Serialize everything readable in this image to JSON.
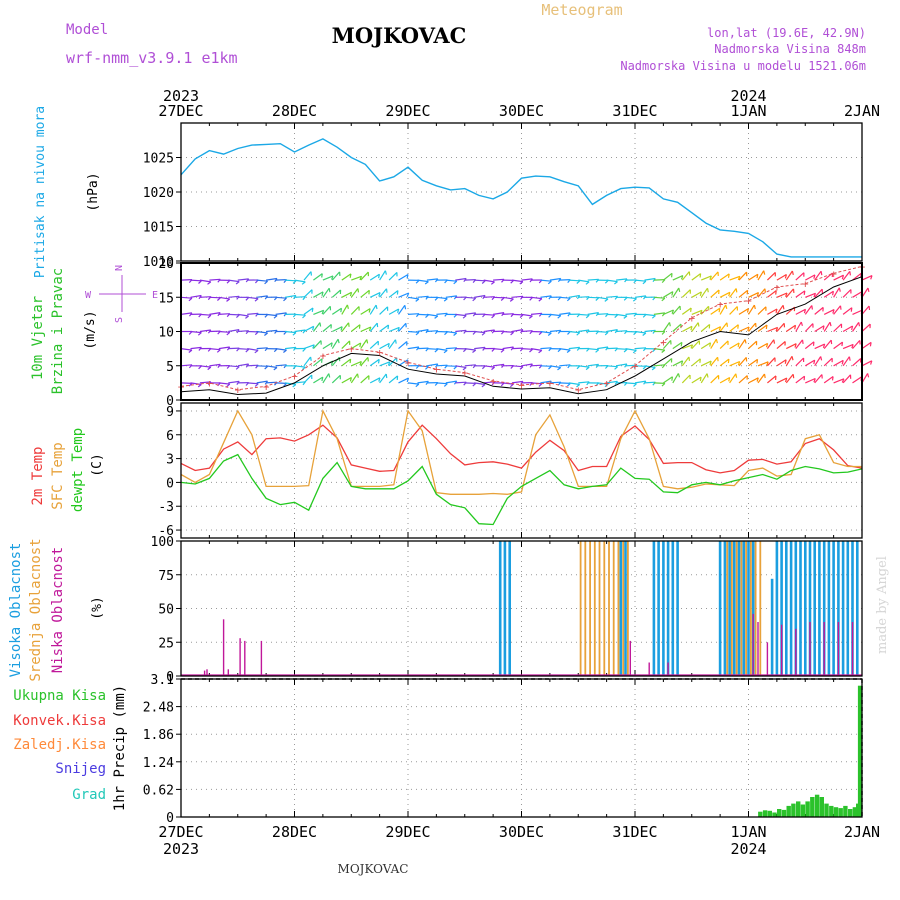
{
  "header": {
    "model_label": "Model",
    "model_name": "wrf-nmm_v3.9.1 e1km",
    "title": "MOJKOVAC",
    "product": "Meteogram",
    "lonlat": "lon,lat (19.6E, 42.9N)",
    "elevation": "Nadmorska Visina 848m",
    "model_elevation": "Nadmorska Visina u modelu 1521.06m"
  },
  "footer": {
    "station": "MOJKOVAC",
    "credit": "made by Angel"
  },
  "colors": {
    "pressure": "#1ba8e6",
    "temp2m": "#ee3b3b",
    "sfc_temp": "#e7a23a",
    "dewpoint": "#23c81e",
    "high_cloud": "#1b9ee0",
    "mid_cloud": "#e8a23a",
    "low_cloud": "#c0189a",
    "precip": "#2bc22b",
    "wind_label": "#2bc22b",
    "dir_legend": "#b04fd6",
    "gust": "#e05050"
  },
  "chart_data": [
    {
      "type": "line",
      "panel": "pressure",
      "title_lines": [
        "Pritisak na nivou mora"
      ],
      "ylabel": "(hPa)",
      "ylim": [
        1010,
        1030
      ],
      "yticks": [
        1010,
        1015,
        1020,
        1025
      ],
      "x_unit": "hours since 27DEC 00Z",
      "x": [
        0,
        3,
        6,
        9,
        12,
        15,
        18,
        21,
        24,
        27,
        30,
        33,
        36,
        39,
        42,
        45,
        48,
        51,
        54,
        57,
        60,
        63,
        66,
        69,
        72,
        75,
        78,
        81,
        84,
        87,
        90,
        93,
        96,
        99,
        102,
        105,
        108,
        111,
        114,
        117,
        120,
        123,
        126,
        129,
        132,
        135,
        138,
        141,
        144
      ],
      "series": [
        {
          "name": "Pritisak na nivou mora",
          "values": [
            1022.5,
            1024.8,
            1026.0,
            1025.5,
            1026.3,
            1026.8,
            1026.9,
            1027.0,
            1025.8,
            1026.8,
            1027.7,
            1026.5,
            1025.0,
            1024.0,
            1021.6,
            1022.2,
            1023.6,
            1021.7,
            1020.9,
            1020.3,
            1020.5,
            1019.5,
            1019.0,
            1020.0,
            1022.0,
            1022.3,
            1022.2,
            1021.5,
            1020.9,
            1018.2,
            1019.5,
            1020.5,
            1020.7,
            1020.6,
            1019.0,
            1018.5,
            1017.0,
            1015.5,
            1014.5,
            1014.3,
            1014.0,
            1012.8,
            1011.0,
            1010.6,
            1010.6,
            1010.6,
            1010.6,
            1010.6,
            1010.6
          ]
        }
      ]
    },
    {
      "type": "line",
      "panel": "wind",
      "title_lines": [
        "10m Vjetar",
        "Brzina i Pravac"
      ],
      "ylabel": "(m/s)",
      "ylim": [
        0,
        20
      ],
      "yticks": [
        0,
        5,
        10,
        15,
        20
      ],
      "direction_legend": {
        "north": "N",
        "south": "S",
        "east": "E",
        "west": "W"
      },
      "x": [
        0,
        6,
        12,
        18,
        24,
        30,
        36,
        42,
        48,
        54,
        60,
        66,
        72,
        78,
        84,
        90,
        96,
        102,
        108,
        114,
        120,
        126,
        132,
        138,
        144
      ],
      "series": [
        {
          "name": "speed",
          "values": [
            1.2,
            1.5,
            0.8,
            1.0,
            2.5,
            5.0,
            6.8,
            6.5,
            4.5,
            3.8,
            3.5,
            2.0,
            1.6,
            1.8,
            0.9,
            1.5,
            3.5,
            6.0,
            8.5,
            10.0,
            9.5,
            12.5,
            14.0,
            16.5,
            18.0
          ]
        },
        {
          "name": "gust",
          "values": [
            2.0,
            2.5,
            1.5,
            2.0,
            3.5,
            6.5,
            7.5,
            7.0,
            5.5,
            4.5,
            4.0,
            2.8,
            2.2,
            2.5,
            1.5,
            2.5,
            5.0,
            8.5,
            12.0,
            14.0,
            14.5,
            16.5,
            17.0,
            18.5,
            19.5
          ]
        }
      ]
    },
    {
      "type": "line",
      "panel": "temperature",
      "title_lines": [
        "2m Temp",
        "SFC Temp",
        "dewpt Temp"
      ],
      "ylabel": "(C)",
      "ylim": [
        -7,
        10
      ],
      "yticks": [
        -6,
        -3,
        0,
        3,
        6,
        9
      ],
      "x": [
        0,
        3,
        6,
        9,
        12,
        15,
        18,
        21,
        24,
        27,
        30,
        33,
        36,
        39,
        42,
        45,
        48,
        51,
        54,
        57,
        60,
        63,
        66,
        69,
        72,
        75,
        78,
        81,
        84,
        87,
        90,
        93,
        96,
        99,
        102,
        105,
        108,
        111,
        114,
        117,
        120,
        123,
        126,
        129,
        132,
        135,
        138,
        141,
        144
      ],
      "series": [
        {
          "name": "2m Temp",
          "values": [
            2.4,
            1.5,
            1.8,
            4.2,
            5.1,
            3.5,
            5.5,
            5.6,
            5.2,
            6.0,
            7.2,
            5.6,
            2.2,
            1.8,
            1.4,
            1.5,
            5.1,
            7.2,
            5.5,
            3.6,
            2.2,
            2.5,
            2.6,
            2.3,
            1.8,
            3.8,
            5.3,
            4.0,
            1.5,
            2.0,
            2.0,
            5.8,
            7.1,
            5.4,
            2.4,
            2.5,
            2.5,
            1.6,
            1.2,
            1.5,
            2.8,
            2.9,
            2.3,
            2.6,
            4.9,
            5.5,
            4.1,
            2.1,
            1.8
          ]
        },
        {
          "name": "SFC Temp",
          "values": [
            1.0,
            0.0,
            1.0,
            5.0,
            9.0,
            6.0,
            -0.5,
            -0.5,
            -0.5,
            -0.4,
            9.0,
            5.5,
            -0.5,
            -0.5,
            -0.5,
            -0.3,
            9.0,
            6.5,
            -1.3,
            -1.5,
            -1.5,
            -1.5,
            -1.4,
            -1.5,
            -1.2,
            6.0,
            8.5,
            4.5,
            -0.5,
            -0.5,
            -0.5,
            5.5,
            9.0,
            5.5,
            -0.5,
            -0.8,
            -0.6,
            -0.2,
            -0.3,
            -0.4,
            1.5,
            1.8,
            0.8,
            1.0,
            5.5,
            6.0,
            2.5,
            2.0,
            2.0
          ]
        },
        {
          "name": "dewpt Temp",
          "values": [
            0.0,
            -0.2,
            0.5,
            2.7,
            3.5,
            0.5,
            -2.0,
            -2.8,
            -2.5,
            -3.5,
            0.5,
            2.5,
            -0.5,
            -0.8,
            -0.8,
            -0.8,
            0.2,
            2.0,
            -1.5,
            -2.8,
            -3.2,
            -5.2,
            -5.3,
            -2.0,
            -0.5,
            0.5,
            1.5,
            -0.3,
            -0.8,
            -0.5,
            -0.3,
            1.8,
            0.5,
            0.4,
            -1.2,
            -1.3,
            -0.3,
            0.0,
            -0.3,
            0.2,
            0.6,
            1.0,
            0.4,
            1.5,
            2.0,
            1.7,
            1.2,
            1.3,
            1.7
          ]
        }
      ]
    },
    {
      "type": "bar",
      "panel": "clouds",
      "title_lines": [
        "Visoka Oblacnost",
        "Srednja Oblacnost",
        "Niska Oblacnost"
      ],
      "ylabel": "(%)",
      "ylim": [
        0,
        100
      ],
      "yticks": [
        0,
        25,
        50,
        75,
        100
      ],
      "series": [
        {
          "name": "Visoka Oblacnost",
          "x": [
            67.5,
            68.5,
            69.5,
            93.0,
            94.0,
            100.0,
            101.0,
            102.0,
            103.0,
            104.0,
            105.0,
            114.0,
            115.0,
            116.0,
            117.0,
            118.0,
            119.0,
            120.0,
            121.0,
            125.0,
            126.0,
            127.0,
            128.0,
            129.0,
            130.0,
            131.0,
            132.0,
            133.0,
            134.0,
            135.0,
            136.0,
            137.0,
            138.0,
            139.0,
            140.0,
            141.0,
            142.0,
            143.0
          ],
          "values": [
            100,
            100,
            100,
            100,
            100,
            100,
            100,
            100,
            100,
            100,
            100,
            100,
            100,
            100,
            100,
            100,
            100,
            100,
            100,
            72,
            100,
            100,
            100,
            100,
            100,
            100,
            100,
            100,
            100,
            100,
            100,
            100,
            100,
            100,
            100,
            100,
            100,
            100
          ]
        },
        {
          "name": "Srednja Oblacnost",
          "x": [
            84.5,
            85.5,
            86.5,
            87.5,
            88.5,
            89.5,
            90.5,
            91.5,
            92.5,
            93.5,
            94.5,
            115.5,
            116.5,
            117.5,
            118.5,
            119.5,
            120.5,
            121.5,
            122.5
          ],
          "values": [
            100,
            100,
            100,
            100,
            100,
            100,
            100,
            100,
            100,
            100,
            100,
            100,
            100,
            100,
            100,
            100,
            100,
            100,
            100
          ]
        },
        {
          "name": "Niska Oblacnost",
          "x": [
            5.0,
            5.5,
            9.0,
            10.0,
            12.5,
            13.5,
            17.0,
            95.0,
            99.0,
            103.0,
            121.0,
            122.0,
            124.0,
            127.0,
            130.0,
            133.0,
            136.0,
            139.0,
            142.0
          ],
          "values": [
            4,
            5,
            42,
            5,
            28,
            26,
            26,
            26,
            10,
            10,
            46,
            40,
            25,
            38,
            35,
            40,
            40,
            40,
            40
          ]
        }
      ]
    },
    {
      "type": "bar",
      "panel": "precipitation",
      "title_lines": [
        "Ukupna Kisa",
        "Konvek.Kisa",
        "Zaledj.Kisa",
        "Snijeg",
        "Grad"
      ],
      "ylabel": "1hr Precip (mm)",
      "ylim": [
        0,
        3.1
      ],
      "yticks": [
        0,
        0.62,
        1.24,
        1.86,
        2.48,
        3.1
      ],
      "x": [
        122.5,
        123.5,
        124.5,
        125.5,
        126.5,
        127.5,
        128.5,
        129.5,
        130.5,
        131.5,
        132.5,
        133.5,
        134.5,
        135.5,
        136.5,
        137.5,
        138.5,
        139.5,
        140.5,
        141.5,
        142.5,
        143.2,
        143.6
      ],
      "series": [
        {
          "name": "Ukupna Kisa",
          "values": [
            0.12,
            0.15,
            0.14,
            0.1,
            0.18,
            0.16,
            0.25,
            0.3,
            0.35,
            0.28,
            0.35,
            0.45,
            0.5,
            0.45,
            0.3,
            0.25,
            0.22,
            0.2,
            0.25,
            0.18,
            0.22,
            0.3,
            2.95
          ]
        }
      ]
    }
  ],
  "x_axis": {
    "top_labels": [
      {
        "x": 0,
        "date": "27DEC",
        "year": "2023"
      },
      {
        "x": 24,
        "date": "28DEC",
        "year": ""
      },
      {
        "x": 48,
        "date": "29DEC",
        "year": ""
      },
      {
        "x": 72,
        "date": "30DEC",
        "year": ""
      },
      {
        "x": 96,
        "date": "31DEC",
        "year": ""
      },
      {
        "x": 120,
        "date": "1JAN",
        "year": "2024"
      },
      {
        "x": 144,
        "date": "2JAN",
        "year": ""
      }
    ],
    "bottom_labels": [
      {
        "x": 0,
        "date": "27DEC",
        "year": "2023"
      },
      {
        "x": 24,
        "date": "28DEC",
        "year": ""
      },
      {
        "x": 48,
        "date": "29DEC",
        "year": ""
      },
      {
        "x": 72,
        "date": "30DEC",
        "year": ""
      },
      {
        "x": 96,
        "date": "31DEC",
        "year": ""
      },
      {
        "x": 120,
        "date": "1JAN",
        "year": "2024"
      },
      {
        "x": 144,
        "date": "2JAN",
        "year": ""
      }
    ]
  }
}
